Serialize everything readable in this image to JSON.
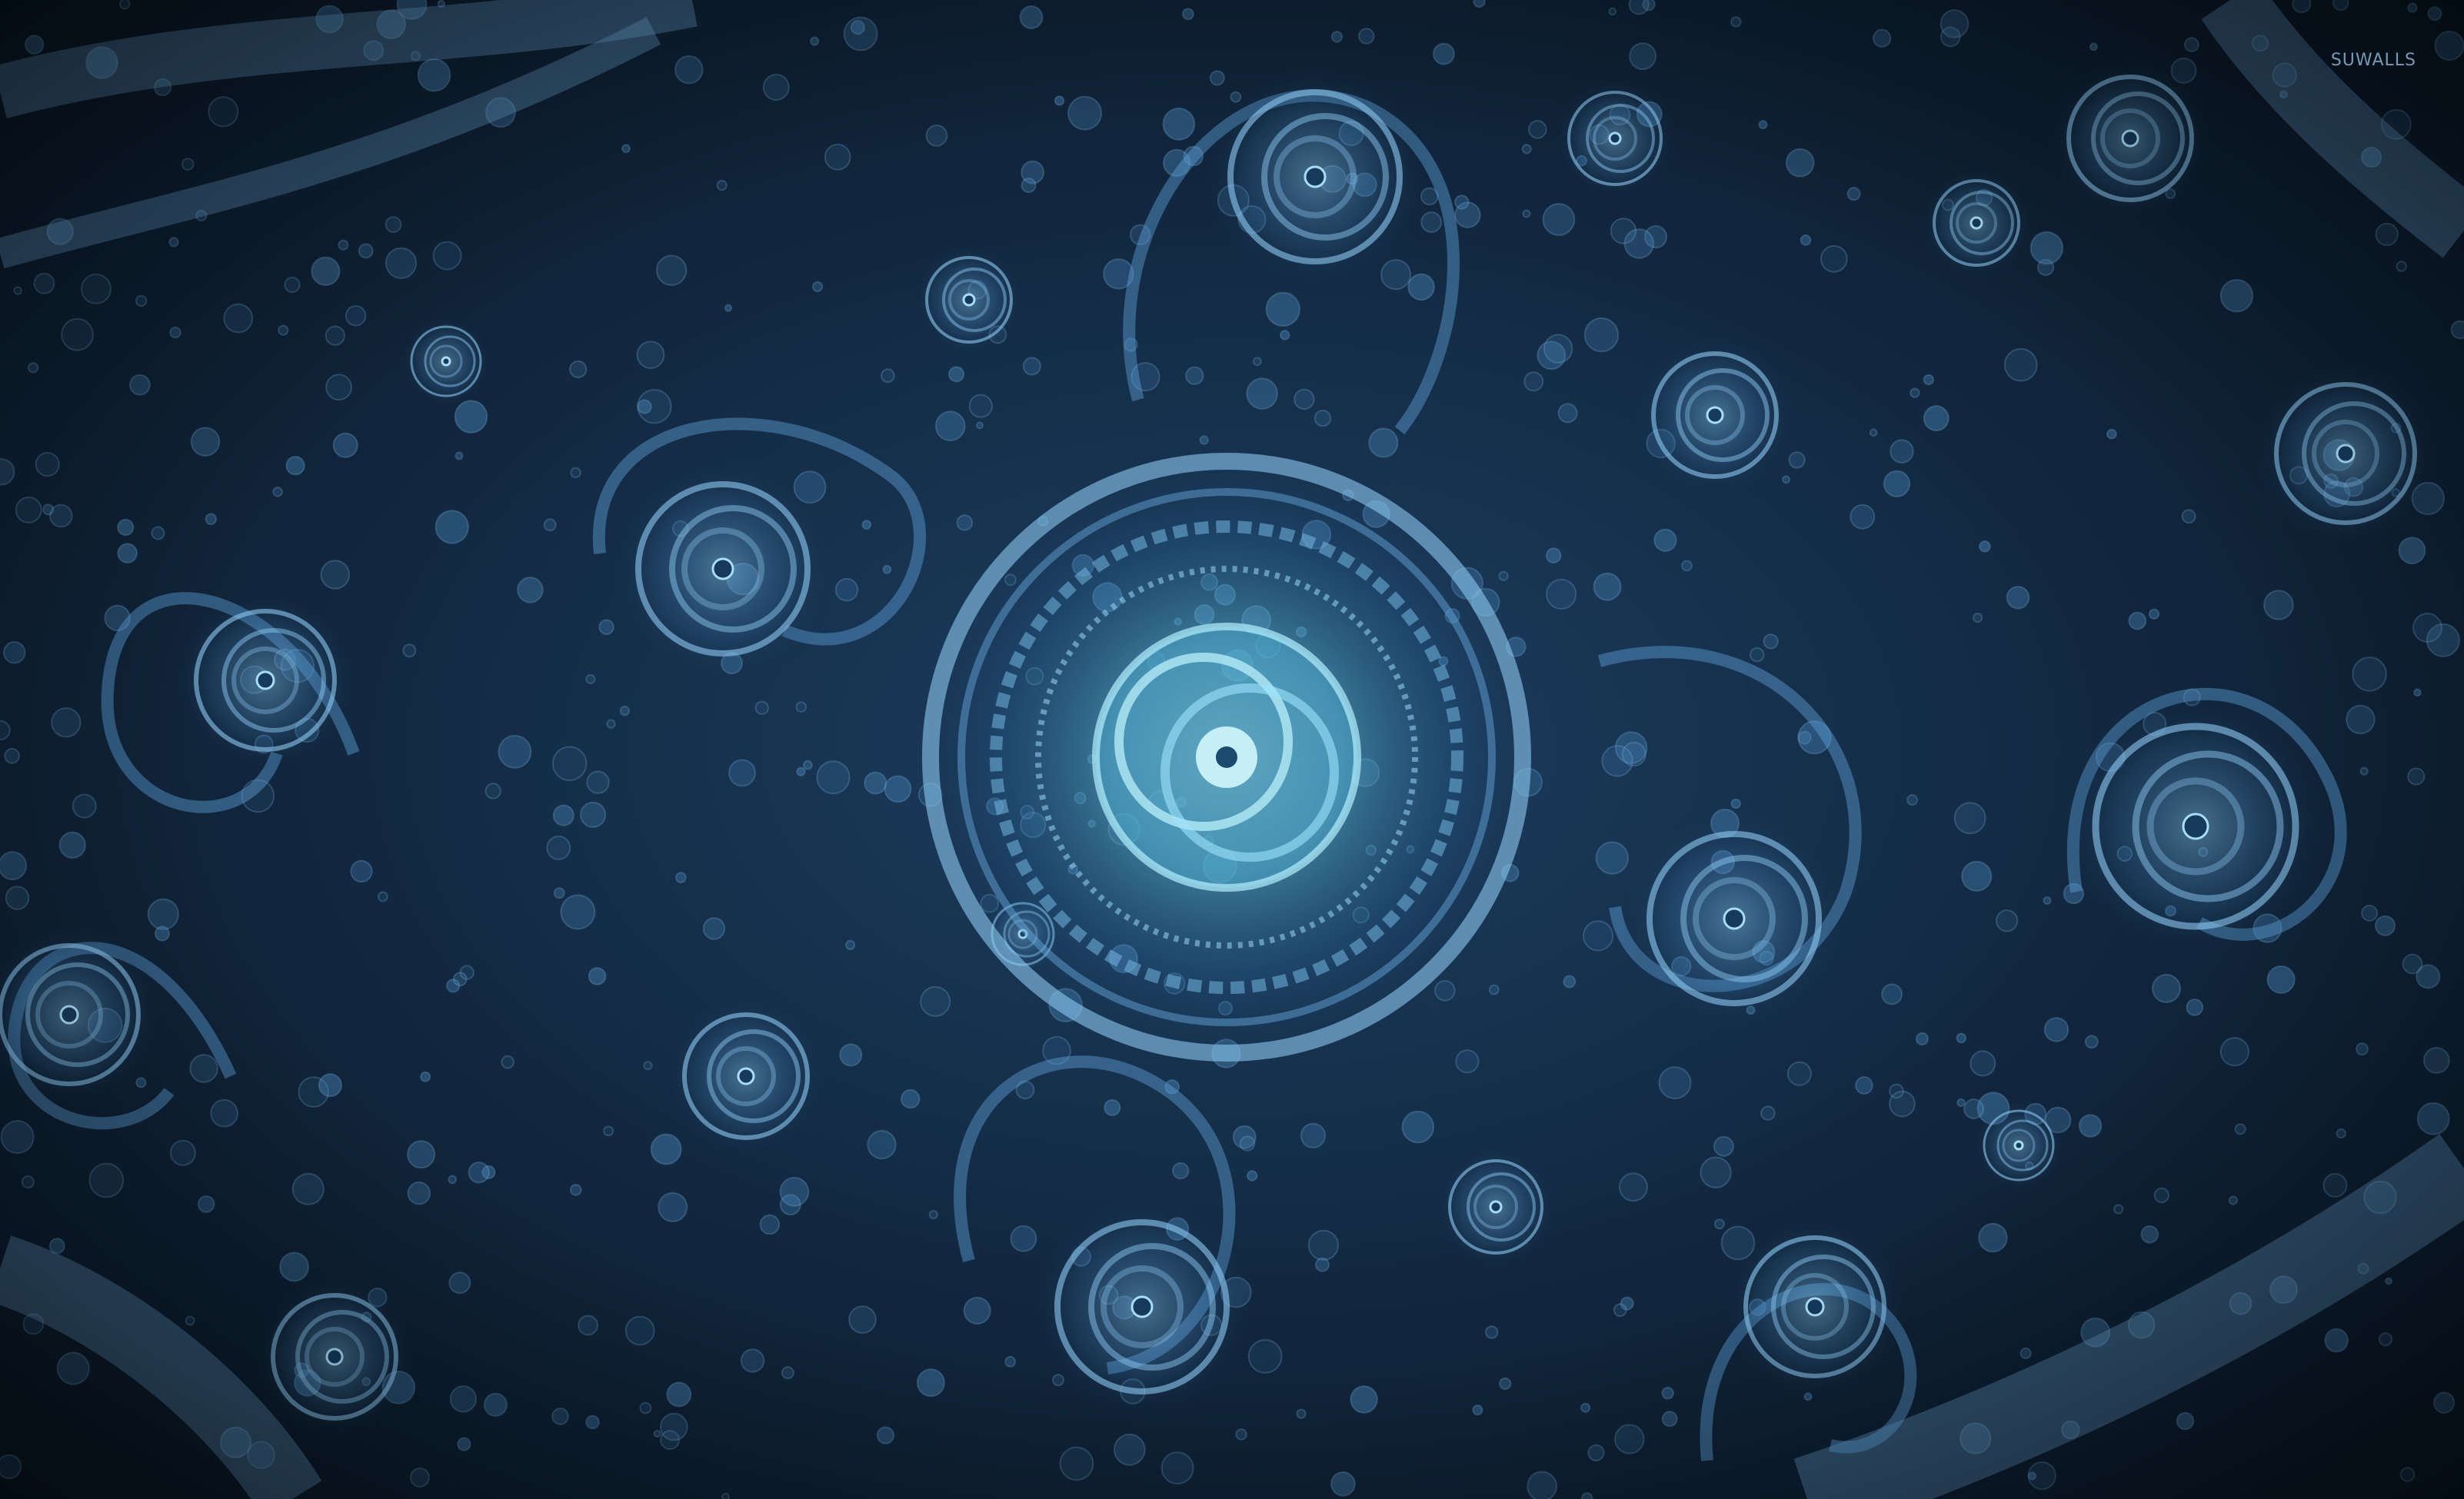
{
  "image": {
    "watermark": "SUWALLS",
    "palette": {
      "background_dark": "#081522",
      "background_mid": "#1d3f63",
      "swirl": "#5e9fd6",
      "glow": "#9fe4ff",
      "core": "#7df2ff"
    }
  }
}
